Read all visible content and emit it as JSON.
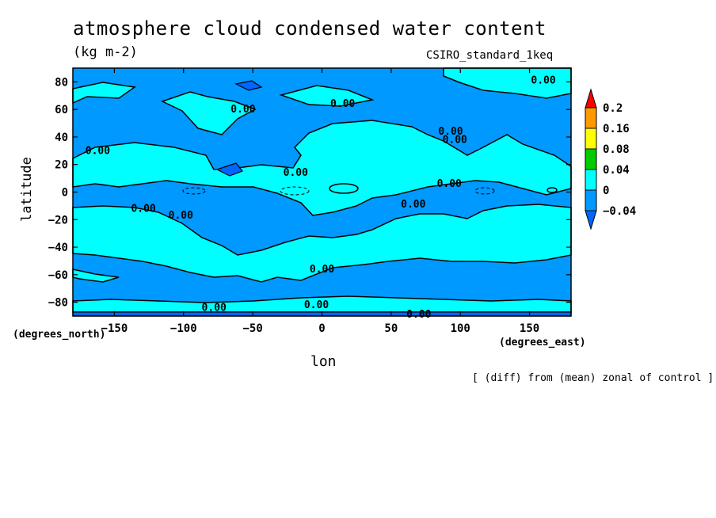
{
  "chart_data": {
    "type": "contour",
    "title": "atmosphere cloud condensed water content",
    "units": "(kg m-2)",
    "model": "CSIRO_standard_1keq",
    "xlabel": "lon",
    "ylabel": "latitude",
    "xunits": "(degrees_east)",
    "yunits": "(degrees_north)",
    "footnote": "[ (diff) from (mean) zonal of control ]",
    "xlim": [
      -180,
      180
    ],
    "ylim": [
      -90,
      90
    ],
    "xticks": [
      -150,
      -100,
      -50,
      0,
      50,
      100,
      150
    ],
    "xtick_labels": [
      "−150",
      "−100",
      "−50",
      "0",
      "50",
      "100",
      "150"
    ],
    "yticks": [
      80,
      60,
      40,
      20,
      0,
      -20,
      -40,
      -60,
      -80
    ],
    "ytick_labels": [
      "80",
      "60",
      "40",
      "20",
      "0",
      "−20",
      "−40",
      "−60",
      "−80"
    ],
    "colorbar": {
      "levels": [
        "0.2",
        "0.16",
        "0.08",
        "0.04",
        "0",
        "−0.04"
      ],
      "colors": [
        "#ff0000",
        "#ff9900",
        "#ffff00",
        "#00cc00",
        "#00ffff",
        "#0099ff",
        "#0066ff"
      ]
    },
    "contour_labels": [
      {
        "text": "0.00",
        "lon": 160,
        "lat": 81
      },
      {
        "text": "0.00",
        "lon": 15,
        "lat": 64
      },
      {
        "text": "0.00",
        "lon": -57,
        "lat": 60
      },
      {
        "text": "0.00",
        "lon": 93,
        "lat": 44
      },
      {
        "text": "0.00",
        "lon": 96,
        "lat": 38
      },
      {
        "text": "0.00",
        "lon": -162,
        "lat": 30
      },
      {
        "text": "0.00",
        "lon": -19,
        "lat": 14
      },
      {
        "text": "0.00",
        "lon": 92,
        "lat": 6
      },
      {
        "text": "0.00",
        "lon": 66,
        "lat": -9
      },
      {
        "text": "0.00",
        "lon": -129,
        "lat": -12
      },
      {
        "text": "0.00",
        "lon": -102,
        "lat": -17
      },
      {
        "text": "0.00",
        "lon": 0,
        "lat": -56
      },
      {
        "text": "0.00",
        "lon": -78,
        "lat": -84
      },
      {
        "text": "0.00",
        "lon": -4,
        "lat": -82
      },
      {
        "text": "0.00",
        "lon": 70,
        "lat": -89
      }
    ]
  }
}
